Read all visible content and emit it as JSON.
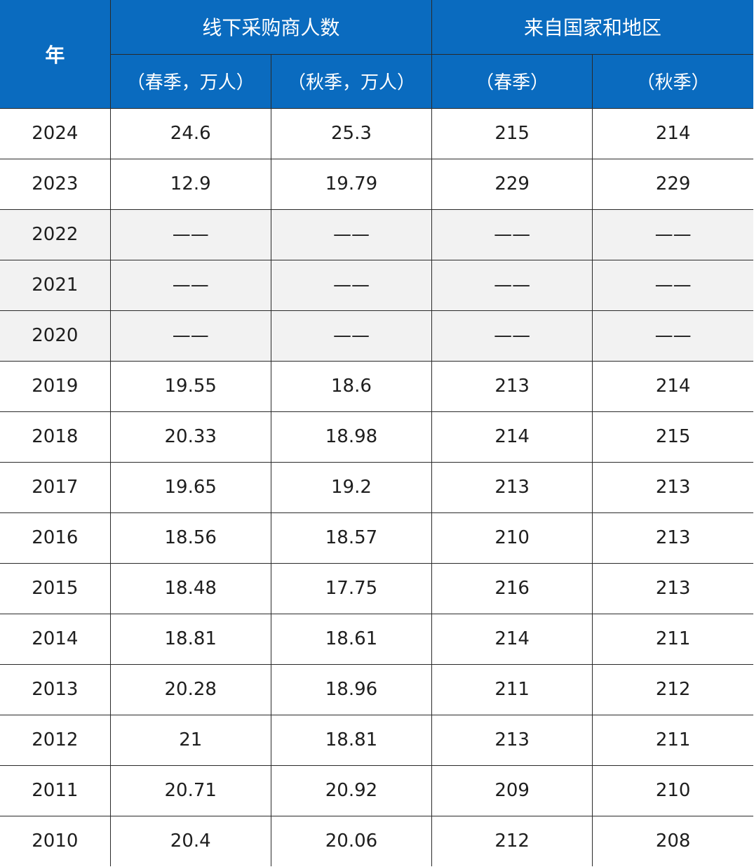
{
  "header": {
    "year": "年",
    "group_buyers": "线下采购商人数",
    "group_regions": "来自国家和地区",
    "sub": [
      "（春季，万人）",
      "（秋季，万人）",
      "（春季）",
      "（秋季）"
    ]
  },
  "rows": [
    {
      "year": "2024",
      "buyers_spring": "24.6",
      "buyers_autumn": "25.3",
      "regions_spring": "215",
      "regions_autumn": "214",
      "muted": false
    },
    {
      "year": "2023",
      "buyers_spring": "12.9",
      "buyers_autumn": "19.79",
      "regions_spring": "229",
      "regions_autumn": "229",
      "muted": false
    },
    {
      "year": "2022",
      "buyers_spring": "——",
      "buyers_autumn": "——",
      "regions_spring": "——",
      "regions_autumn": "——",
      "muted": true
    },
    {
      "year": "2021",
      "buyers_spring": "——",
      "buyers_autumn": "——",
      "regions_spring": "——",
      "regions_autumn": "——",
      "muted": true
    },
    {
      "year": "2020",
      "buyers_spring": "——",
      "buyers_autumn": "——",
      "regions_spring": "——",
      "regions_autumn": "——",
      "muted": true
    },
    {
      "year": "2019",
      "buyers_spring": "19.55",
      "buyers_autumn": "18.6",
      "regions_spring": "213",
      "regions_autumn": "214",
      "muted": false
    },
    {
      "year": "2018",
      "buyers_spring": "20.33",
      "buyers_autumn": "18.98",
      "regions_spring": "214",
      "regions_autumn": "215",
      "muted": false
    },
    {
      "year": "2017",
      "buyers_spring": "19.65",
      "buyers_autumn": "19.2",
      "regions_spring": "213",
      "regions_autumn": "213",
      "muted": false
    },
    {
      "year": "2016",
      "buyers_spring": "18.56",
      "buyers_autumn": "18.57",
      "regions_spring": "210",
      "regions_autumn": "213",
      "muted": false
    },
    {
      "year": "2015",
      "buyers_spring": "18.48",
      "buyers_autumn": "17.75",
      "regions_spring": "216",
      "regions_autumn": "213",
      "muted": false
    },
    {
      "year": "2014",
      "buyers_spring": "18.81",
      "buyers_autumn": "18.61",
      "regions_spring": "214",
      "regions_autumn": "211",
      "muted": false
    },
    {
      "year": "2013",
      "buyers_spring": "20.28",
      "buyers_autumn": "18.96",
      "regions_spring": "211",
      "regions_autumn": "212",
      "muted": false
    },
    {
      "year": "2012",
      "buyers_spring": "21",
      "buyers_autumn": "18.81",
      "regions_spring": "213",
      "regions_autumn": "211",
      "muted": false
    },
    {
      "year": "2011",
      "buyers_spring": "20.71",
      "buyers_autumn": "20.92",
      "regions_spring": "209",
      "regions_autumn": "210",
      "muted": false
    },
    {
      "year": "2010",
      "buyers_spring": "20.4",
      "buyers_autumn": "20.06",
      "regions_spring": "212",
      "regions_autumn": "208",
      "muted": false
    }
  ],
  "colors": {
    "header_bg": "#0a6bbf",
    "header_text": "#ffffff",
    "muted_row_bg": "#f2f2f2",
    "grid": "#2a2a2a"
  }
}
